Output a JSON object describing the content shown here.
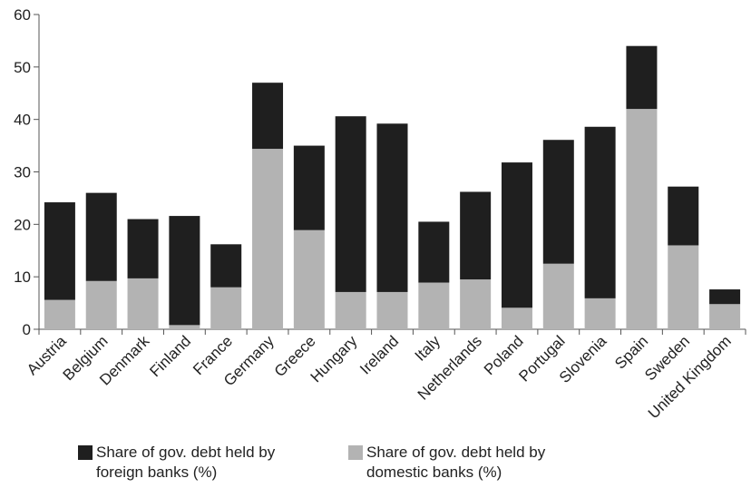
{
  "chart_data": {
    "type": "bar",
    "stacked": true,
    "title": "",
    "xlabel": "",
    "ylabel": "",
    "ylim": [
      0,
      60
    ],
    "yticks": [
      0,
      10,
      20,
      30,
      40,
      50,
      60
    ],
    "grid": false,
    "legend_position": "bottom",
    "categories": [
      "Austria",
      "Belgium",
      "Denmark",
      "Finland",
      "France",
      "Germany",
      "Greece",
      "Hungary",
      "Ireland",
      "Italy",
      "Netherlands",
      "Poland",
      "Portugal",
      "Slovenia",
      "Spain",
      "Sweden",
      "United Kingdom"
    ],
    "series": [
      {
        "name": "Share of gov. debt held by domestic banks (%)",
        "color": "#b3b3b3",
        "values": [
          5.6,
          9.2,
          9.7,
          0.8,
          8.0,
          34.4,
          18.9,
          7.1,
          7.1,
          8.9,
          9.5,
          4.1,
          12.5,
          5.9,
          42.0,
          16.0,
          4.8
        ]
      },
      {
        "name": "Share of gov. debt held by foreign banks (%)",
        "color": "#1f1f1f",
        "values": [
          18.6,
          16.8,
          11.3,
          20.8,
          8.2,
          12.6,
          16.1,
          33.5,
          32.1,
          11.6,
          16.7,
          27.7,
          23.6,
          32.7,
          12.0,
          11.2,
          2.8
        ]
      }
    ],
    "legend": [
      {
        "label": "Share of gov. debt held by foreign banks (%)",
        "color": "#1f1f1f"
      },
      {
        "label": "Share of gov. debt held by domestic banks (%)",
        "color": "#b3b3b3"
      }
    ]
  }
}
